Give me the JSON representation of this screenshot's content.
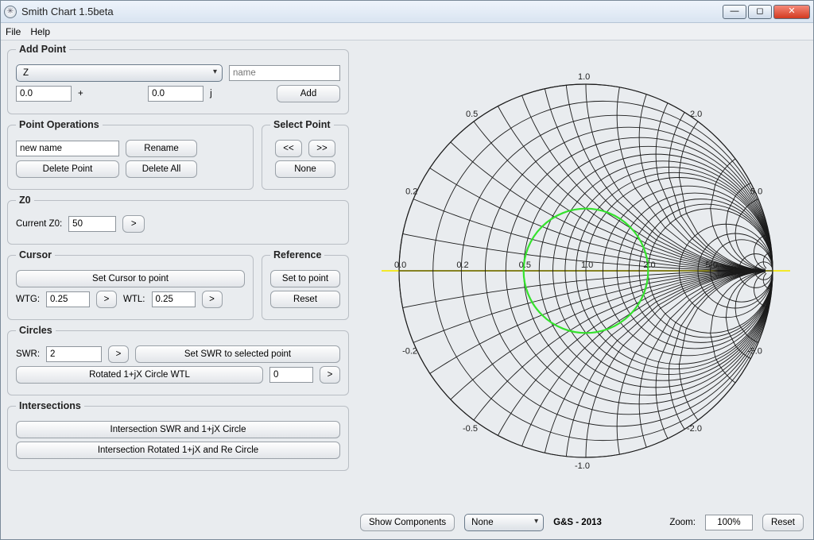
{
  "window": {
    "title": "Smith Chart 1.5beta"
  },
  "menu": {
    "file": "File",
    "help": "Help"
  },
  "add_point": {
    "legend": "Add Point",
    "mode_selected": "Z",
    "name_placeholder": "name",
    "real": "0.0",
    "plus": "+",
    "imag": "0.0",
    "j": "j",
    "add_btn": "Add"
  },
  "point_ops": {
    "legend": "Point Operations",
    "new_name_value": "new name",
    "rename": "Rename",
    "delete_point": "Delete Point",
    "delete_all": "Delete All"
  },
  "select_point": {
    "legend": "Select Point",
    "prev": "<<",
    "next": ">>",
    "none": "None"
  },
  "z0": {
    "legend": "Z0",
    "label": "Current Z0:",
    "value": "50",
    "go": ">"
  },
  "cursor": {
    "legend": "Cursor",
    "set_cursor": "Set Cursor to  point",
    "wtg_label": "WTG:",
    "wtg_value": "0.25",
    "wtl_label": "WTL:",
    "wtl_value": "0.25",
    "go": ">"
  },
  "reference": {
    "legend": "Reference",
    "set_to_point": "Set to point",
    "reset": "Reset"
  },
  "circles": {
    "legend": "Circles",
    "swr_label": "SWR:",
    "swr_value": "2",
    "go": ">",
    "set_swr": "Set SWR to selected point",
    "rotated_btn": "Rotated 1+jX Circle WTL",
    "rotated_value": "0"
  },
  "intersections": {
    "legend": "Intersections",
    "btn1": "Intersection SWR and 1+jX Circle",
    "btn2": "Intersection Rotated 1+jX and Re Circle"
  },
  "bottom": {
    "show_components": "Show Components",
    "mode_selected": "None",
    "credit": "G&S - 2013",
    "zoom_label": "Zoom:",
    "zoom_value": "100%",
    "reset": "Reset"
  },
  "chart": {
    "type": "smith-chart",
    "size": 500,
    "radius": 235,
    "background": "#e9ecef",
    "grid_color": "#1a1a1a",
    "grid_stroke": 0.9,
    "outer_stroke": 1.2,
    "swr_circle_color": "#35e22d",
    "swr_circle_stroke": 2.2,
    "swr_value": 2.0,
    "horizontal_line_color": "#f3e92a",
    "horizontal_line_stroke": 2.0,
    "resistance_values": [
      0,
      0.2,
      0.5,
      1.0,
      2.0,
      5.0
    ],
    "resistance_grid": [
      0,
      0.1,
      0.2,
      0.3,
      0.4,
      0.5,
      0.6,
      0.7,
      0.8,
      0.9,
      1.0,
      1.2,
      1.4,
      1.6,
      1.8,
      2.0,
      3.0,
      4.0,
      5.0,
      10.0,
      20.0
    ],
    "reactance_values": [
      0.2,
      0.5,
      1.0,
      2.0,
      5.0
    ],
    "reactance_grid": [
      0.1,
      0.2,
      0.3,
      0.4,
      0.5,
      0.6,
      0.7,
      0.8,
      0.9,
      1.0,
      1.2,
      1.4,
      1.6,
      1.8,
      2.0,
      3.0,
      4.0,
      5.0,
      10.0,
      20.0
    ],
    "label_fontsize": 11,
    "label_color": "#222222"
  }
}
